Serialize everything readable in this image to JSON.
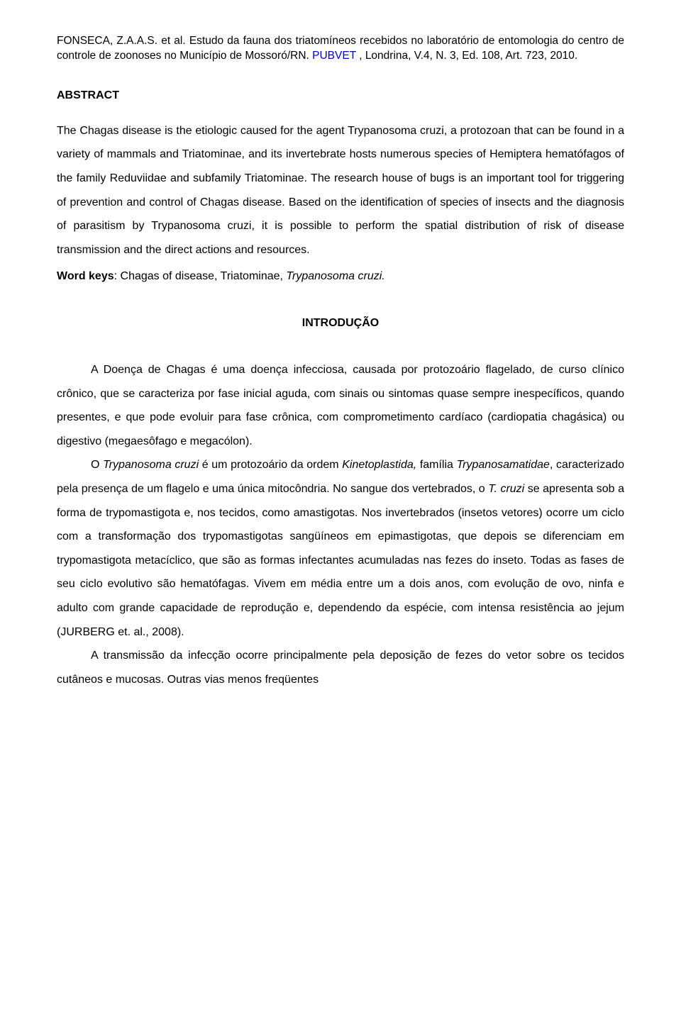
{
  "header": {
    "authors": "FONSECA, Z.A.A.S. et al.",
    "title_pt": "Estudo da fauna dos triatomíneos recebidos no laboratório de entomologia do centro de controle de zoonoses no Município de Mossoró/RN.",
    "journal": "PUBVET",
    "pub_info": ", Londrina, V.4, N. 3, Ed. 108, Art. 723, 2010."
  },
  "abstract": {
    "heading": "ABSTRACT",
    "body": "The Chagas disease is the etiologic caused for the agent Trypanosoma cruzi, a protozoan that can be found in a variety of mammals and Triatominae, and its invertebrate hosts numerous species of Hemiptera hematófagos of the family Reduviidae and subfamily Triatominae. The research house of bugs is an important tool for triggering of prevention and control of Chagas disease. Based on the identification of species of insects and the diagnosis of parasitism by Trypanosoma cruzi, it is possible to perform the spatial distribution of risk of disease transmission and the direct actions and resources.",
    "keys_label": "Word keys",
    "keys_value": ": Chagas of disease, Triatominae, ",
    "keys_italic": "Trypanosoma cruzi."
  },
  "intro": {
    "heading": "INTRODUÇÃO",
    "p1": "A Doença de Chagas é uma doença infecciosa, causada por protozoário flagelado, de curso clínico crônico, que se caracteriza por fase inicial aguda, com sinais ou sintomas quase sempre inespecíficos, quando presentes, e que pode evoluir para fase crônica, com comprometimento cardíaco (cardiopatia chagásica) ou digestivo (megaesôfago e megacólon).",
    "p2_a": "O ",
    "p2_i1": "Trypanosoma cruzi",
    "p2_b": " é um protozoário da ordem ",
    "p2_i2": "Kinetoplastida,",
    "p2_c": " família ",
    "p2_i3": "Trypanosamatidae",
    "p2_d": ", caracterizado pela presença de um flagelo e uma única mitocôndria. No sangue dos vertebrados, o ",
    "p2_i4": "T. cruzi",
    "p2_e": " se apresenta sob a forma de trypomastigota e, nos tecidos, como amastigotas. Nos invertebrados (insetos vetores) ocorre um ciclo com a transformação dos trypomastigotas sangüíneos em epimastigotas, que depois se diferenciam em trypomastigota metacíclico, que são as formas infectantes acumuladas nas fezes do inseto. Todas as fases de seu ciclo evolutivo são hematófagas. Vivem em média entre um a dois anos, com evolução de ovo, ninfa e adulto com grande capacidade de reprodução e, dependendo da espécie, com intensa resistência ao jejum (JURBERG et. al., 2008).",
    "p3": "A transmissão da infecção ocorre principalmente pela deposição de fezes do vetor sobre os tecidos cutâneos e mucosas. Outras vias menos freqüentes"
  }
}
